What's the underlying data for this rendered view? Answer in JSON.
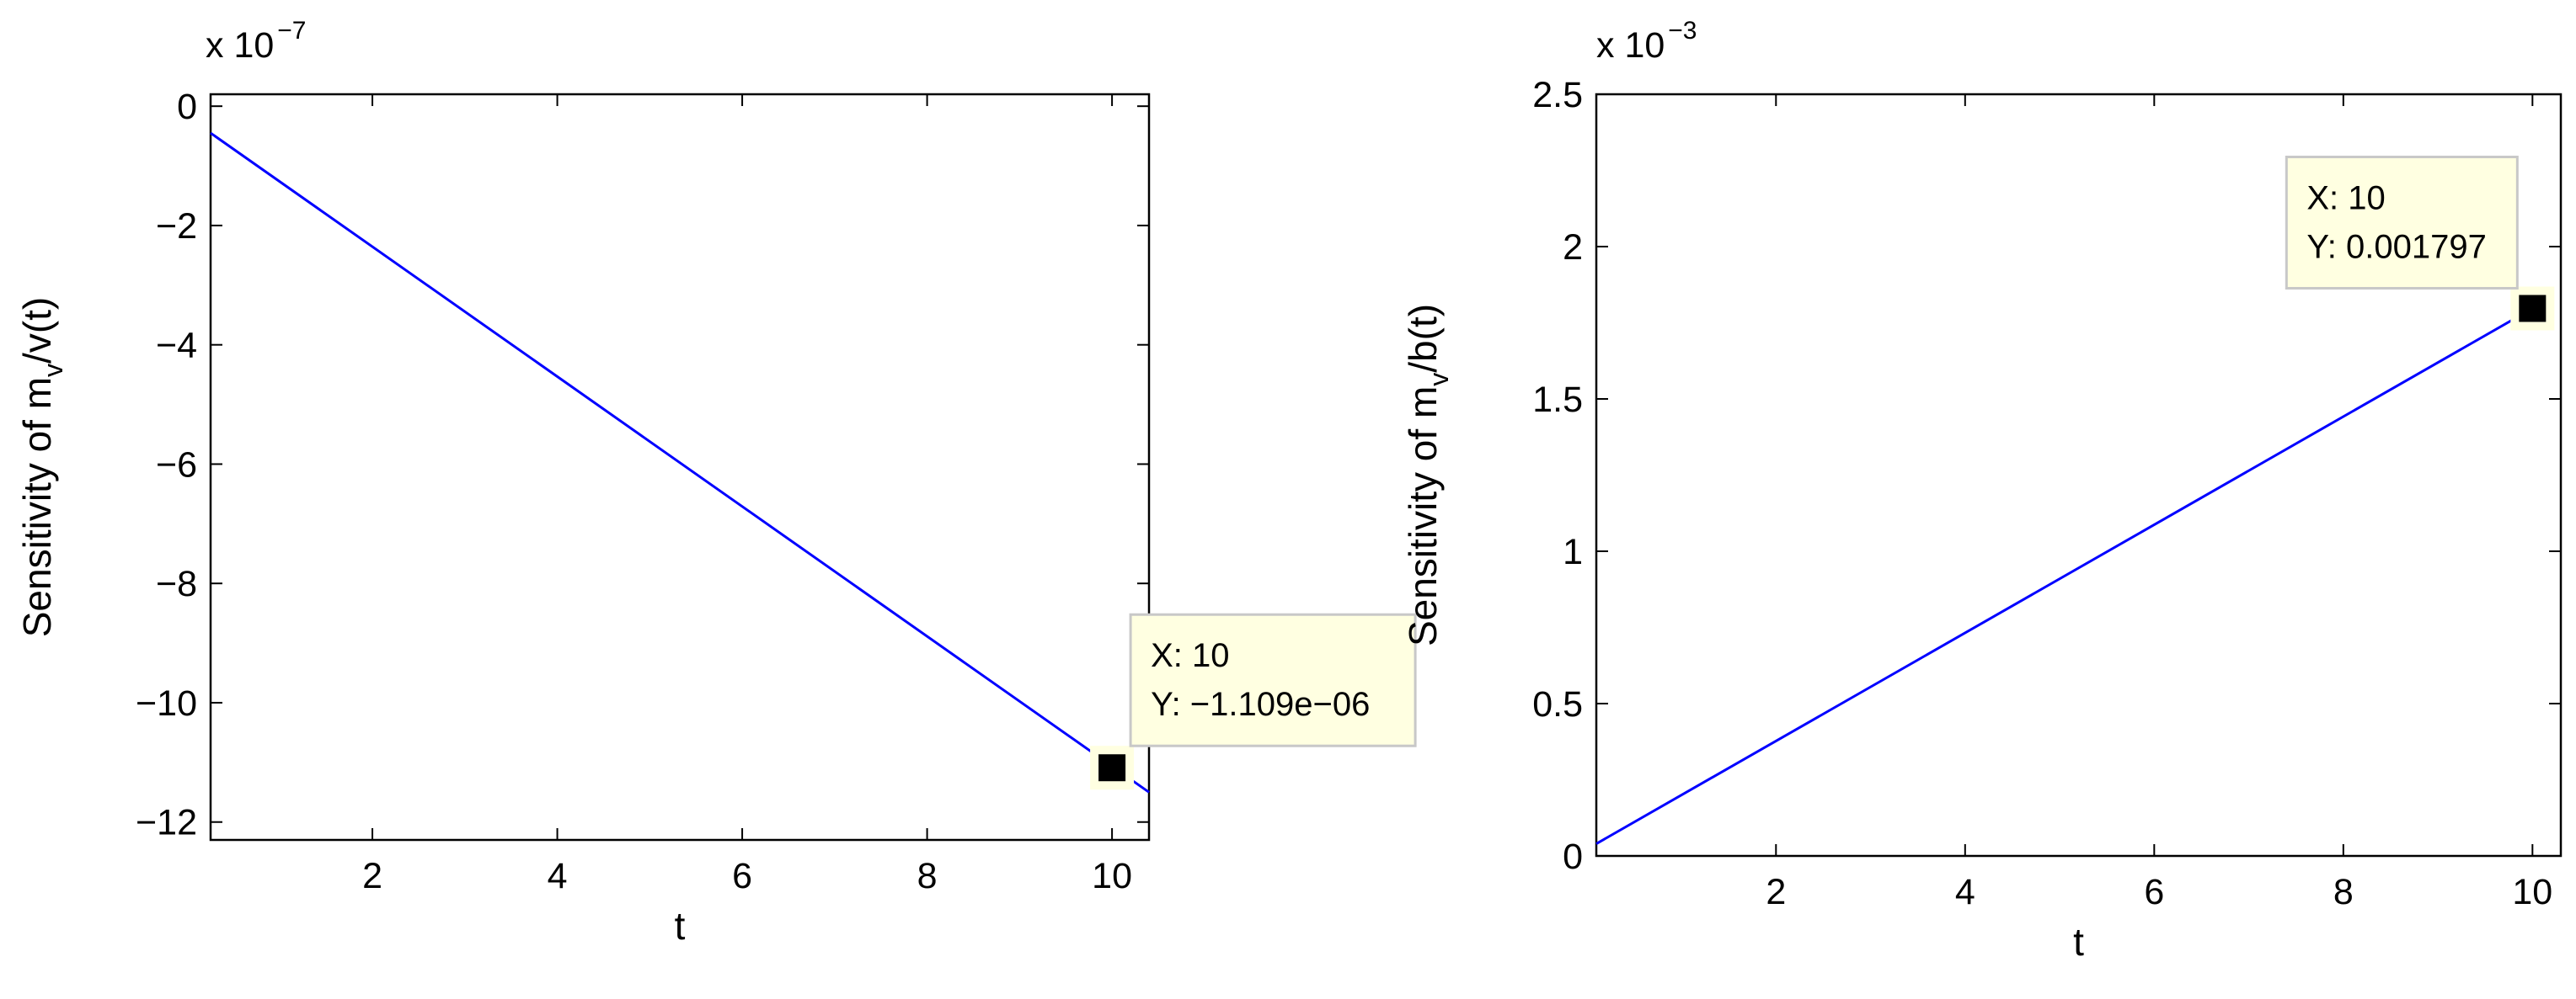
{
  "colors": {
    "line": "#0000ff",
    "axes": "#000000",
    "tip_bg": "#ffffe1",
    "tip_border": "#c8c8c8",
    "marker": "#000000"
  },
  "chart_data": [
    {
      "type": "line",
      "xlabel": "t",
      "ylabel_base": "Sensitivity of m",
      "ylabel_sub": "v",
      "ylabel_tail": "/v(t)",
      "exponent_prefix": "x 10",
      "exponent": "−7",
      "xlim": [
        0.25,
        10.4
      ],
      "ylim": [
        -12.3,
        0.2
      ],
      "xticks": [
        2,
        4,
        6,
        8,
        10
      ],
      "xtick_labels": [
        "2",
        "4",
        "6",
        "8",
        "10"
      ],
      "yticks": [
        -12,
        -10,
        -8,
        -6,
        -4,
        -2,
        0
      ],
      "ytick_labels": [
        "−12",
        "−10",
        "−8",
        "−6",
        "−4",
        "−2",
        "0"
      ],
      "series": [
        {
          "x": [
            0.25,
            10.4
          ],
          "y": [
            -0.45,
            -11.5
          ]
        }
      ],
      "datatip": {
        "x": 10,
        "y": -11.09,
        "line1": "X: 10",
        "line2": "Y: −1.109e−06",
        "placement": "right"
      }
    },
    {
      "type": "line",
      "xlabel": "t",
      "ylabel_base": "Sensitivity of m",
      "ylabel_sub": "v",
      "ylabel_tail": "/b(t)",
      "exponent_prefix": "x 10",
      "exponent": "−3",
      "xlim": [
        0.1,
        10.3
      ],
      "ylim": [
        0,
        2.5
      ],
      "xticks": [
        2,
        4,
        6,
        8,
        10
      ],
      "xtick_labels": [
        "2",
        "4",
        "6",
        "8",
        "10"
      ],
      "yticks": [
        0,
        0.5,
        1,
        1.5,
        2,
        2.5
      ],
      "ytick_labels": [
        "0",
        "0.5",
        "1",
        "1.5",
        "2",
        "2.5"
      ],
      "series": [
        {
          "x": [
            0.1,
            10.0
          ],
          "y": [
            0.04,
            1.797
          ]
        }
      ],
      "datatip": {
        "x": 10,
        "y": 1.797,
        "line1": "X: 10",
        "line2": "Y: 0.001797",
        "placement": "above-left"
      }
    }
  ]
}
